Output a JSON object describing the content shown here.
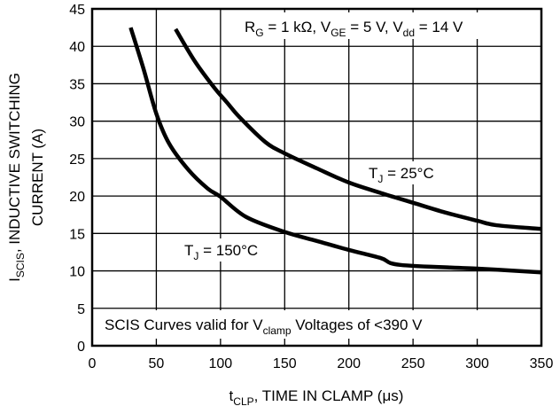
{
  "chart_data": {
    "type": "line",
    "xlabel": {
      "main": "t",
      "sub": "CLP",
      "rest": ", TIME IN CLAMP (",
      "mu": "μ",
      "tail": "s)"
    },
    "ylabel": {
      "line1_main": "I",
      "line1_sub": "SCIS",
      "line1_rest": ", INDUCTIVE SWITCHING",
      "line2": "CURRENT (A)"
    },
    "xlim": [
      0,
      350
    ],
    "ylim": [
      0,
      45
    ],
    "x_ticks": [
      0,
      50,
      100,
      150,
      200,
      250,
      300,
      350
    ],
    "y_ticks": [
      0,
      5,
      10,
      15,
      20,
      25,
      30,
      35,
      40,
      45
    ],
    "grid": true,
    "conditions": {
      "r_main": "R",
      "r_sub": "G",
      "r_val": " = 1 kΩ, ",
      "v1_main": "V",
      "v1_sub": "GE",
      "v1_val": " = 5 V, ",
      "v2_main": "V",
      "v2_sub": "dd",
      "v2_val": " = 14 V"
    },
    "note": {
      "pre": "SCIS Curves valid for V",
      "sub": "clamp",
      "post": " Voltages of <390 V"
    },
    "series": [
      {
        "label_main": "T",
        "label_sub": "J",
        "label_val": " = 25°C",
        "x": [
          65,
          80,
          95,
          105,
          115,
          135,
          150,
          175,
          200,
          225,
          250,
          275,
          300,
          315,
          350
        ],
        "y": [
          42.3,
          38,
          34.5,
          32.5,
          30.5,
          27.2,
          25.7,
          23.7,
          21.8,
          20.4,
          19.1,
          17.8,
          16.7,
          16.1,
          15.6
        ]
      },
      {
        "label_main": "T",
        "label_sub": "J",
        "label_val": " = 150°C",
        "x": [
          30,
          40,
          50,
          60,
          75,
          90,
          100,
          120,
          150,
          175,
          200,
          225,
          240,
          300,
          350
        ],
        "y": [
          42.5,
          37,
          31,
          27,
          23.5,
          21,
          19.9,
          17.2,
          15.2,
          14,
          12.8,
          11.7,
          10.8,
          10.3,
          9.8
        ]
      }
    ]
  }
}
